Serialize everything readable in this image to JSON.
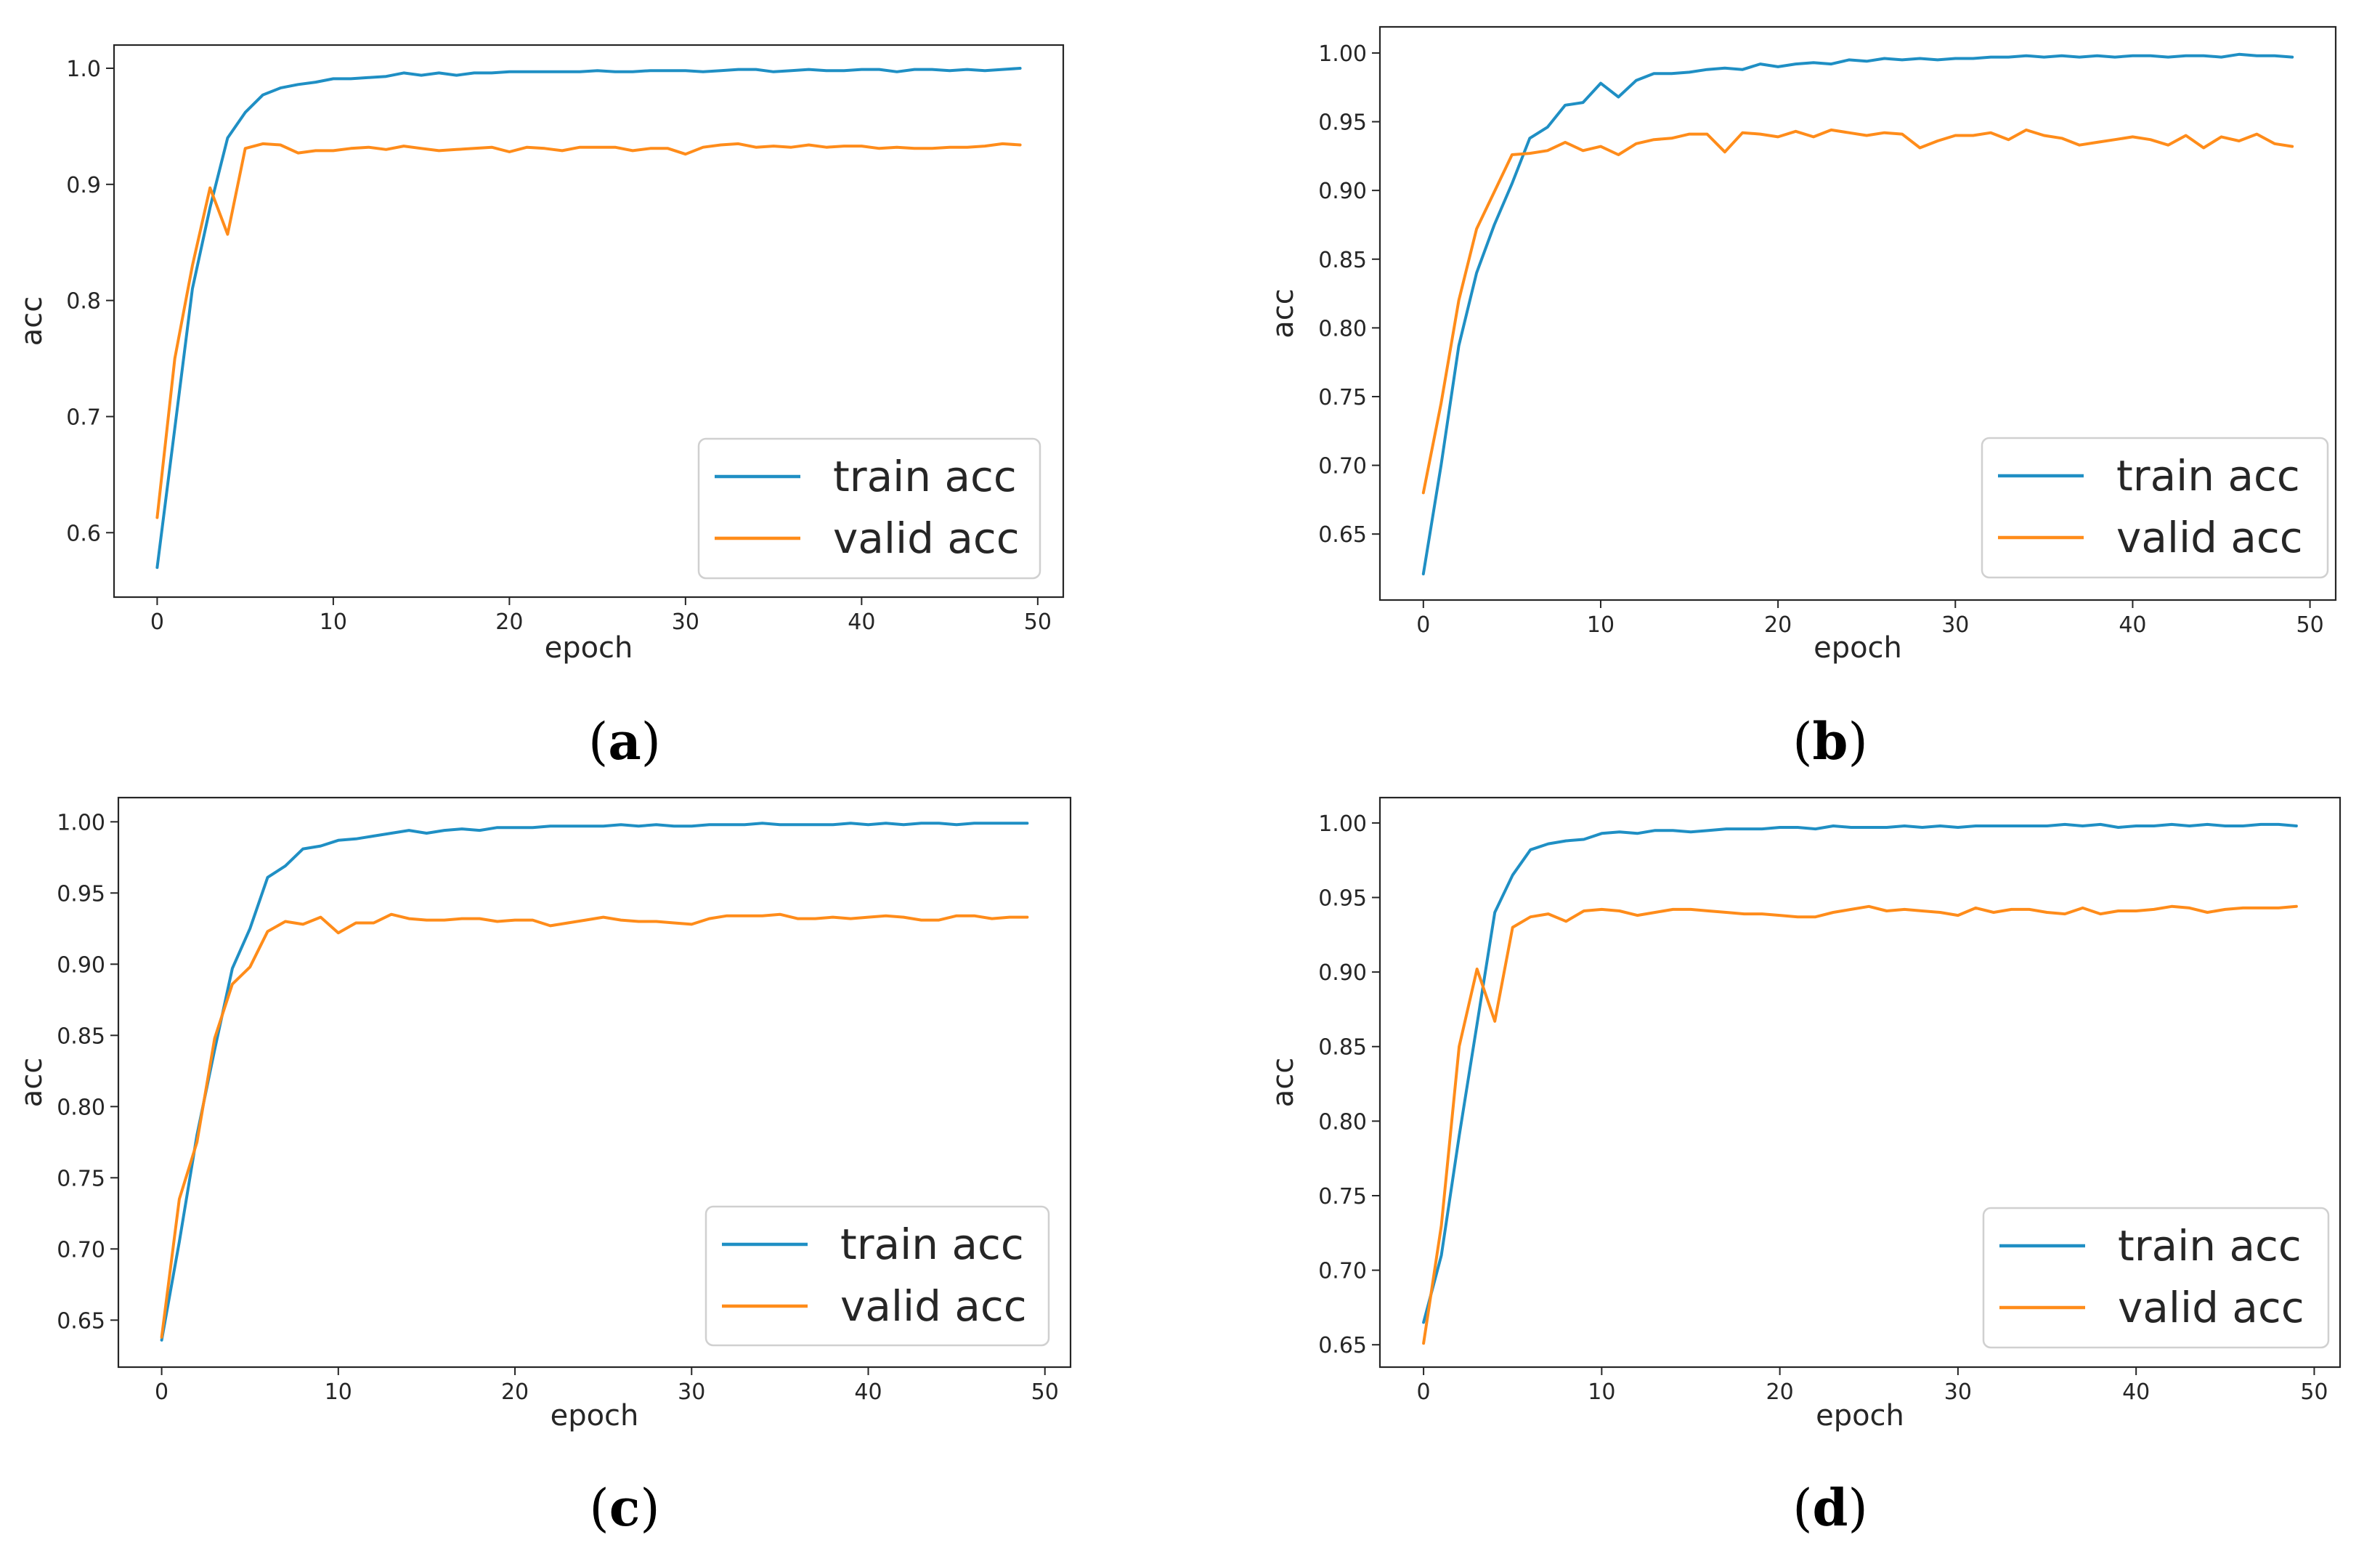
{
  "colors": {
    "train": "#1f8fc4",
    "valid": "#ff8c1a",
    "axis": "#262626",
    "legend_border": "#d0d0d0"
  },
  "chart_data": [
    {
      "type": "line",
      "panel": "a",
      "caption": {
        "open": "(",
        "letter": "a",
        "close": ")"
      },
      "xlabel": "epoch",
      "ylabel": "acc",
      "xlim": [
        -2.45,
        51.45
      ],
      "ylim": [
        0.5445,
        1.02
      ],
      "xticks": [
        0,
        10,
        20,
        30,
        40,
        50
      ],
      "xtick_labels": [
        "0",
        "10",
        "20",
        "30",
        "40",
        "50"
      ],
      "yticks": [
        0.6,
        0.7,
        0.8,
        0.9,
        1.0
      ],
      "ytick_labels": [
        "0.6",
        "0.7",
        "0.8",
        "0.9",
        "1.0"
      ],
      "legend": {
        "position": "lower-right",
        "entries": [
          "train acc",
          "valid acc"
        ]
      },
      "series": [
        {
          "name": "train acc",
          "key": "train",
          "values": [
            0.57,
            0.69,
            0.81,
            0.88,
            0.94,
            0.962,
            0.977,
            0.983,
            0.986,
            0.988,
            0.991,
            0.991,
            0.992,
            0.993,
            0.996,
            0.994,
            0.996,
            0.994,
            0.996,
            0.996,
            0.997,
            0.997,
            0.997,
            0.997,
            0.997,
            0.998,
            0.997,
            0.997,
            0.998,
            0.998,
            0.998,
            0.997,
            0.998,
            0.999,
            0.999,
            0.997,
            0.998,
            0.999,
            0.998,
            0.998,
            0.999,
            0.999,
            0.997,
            0.999,
            0.999,
            0.998,
            0.999,
            0.998,
            0.999,
            1.0
          ]
        },
        {
          "name": "valid acc",
          "key": "valid",
          "values": [
            0.613,
            0.75,
            0.83,
            0.897,
            0.857,
            0.931,
            0.935,
            0.934,
            0.927,
            0.929,
            0.929,
            0.931,
            0.932,
            0.93,
            0.933,
            0.931,
            0.929,
            0.93,
            0.931,
            0.932,
            0.928,
            0.932,
            0.931,
            0.929,
            0.932,
            0.932,
            0.932,
            0.929,
            0.931,
            0.931,
            0.926,
            0.932,
            0.934,
            0.935,
            0.932,
            0.933,
            0.932,
            0.934,
            0.932,
            0.933,
            0.933,
            0.931,
            0.932,
            0.931,
            0.931,
            0.932,
            0.932,
            0.933,
            0.935,
            0.934
          ]
        }
      ]
    },
    {
      "type": "line",
      "panel": "b",
      "caption": {
        "open": "(",
        "letter": "b",
        "close": ")"
      },
      "xlabel": "epoch",
      "ylabel": "acc",
      "xlim": [
        -2.45,
        51.45
      ],
      "ylim": [
        0.602,
        1.019
      ],
      "xticks": [
        0,
        10,
        20,
        30,
        40,
        50
      ],
      "xtick_labels": [
        "0",
        "10",
        "20",
        "30",
        "40",
        "50"
      ],
      "yticks": [
        0.65,
        0.7,
        0.75,
        0.8,
        0.85,
        0.9,
        0.95,
        1.0
      ],
      "ytick_labels": [
        "0.65",
        "0.70",
        "0.75",
        "0.80",
        "0.85",
        "0.90",
        "0.95",
        "1.00"
      ],
      "legend": {
        "position": "lower-right",
        "entries": [
          "train acc",
          "valid acc"
        ]
      },
      "series": [
        {
          "name": "train acc",
          "key": "train",
          "values": [
            0.621,
            0.7,
            0.787,
            0.84,
            0.875,
            0.905,
            0.938,
            0.946,
            0.962,
            0.964,
            0.978,
            0.968,
            0.98,
            0.985,
            0.985,
            0.986,
            0.988,
            0.989,
            0.988,
            0.992,
            0.99,
            0.992,
            0.993,
            0.992,
            0.995,
            0.994,
            0.996,
            0.995,
            0.996,
            0.995,
            0.996,
            0.996,
            0.997,
            0.997,
            0.998,
            0.997,
            0.998,
            0.997,
            0.998,
            0.997,
            0.998,
            0.998,
            0.997,
            0.998,
            0.998,
            0.997,
            0.999,
            0.998,
            0.998,
            0.997
          ]
        },
        {
          "name": "valid acc",
          "key": "valid",
          "values": [
            0.68,
            0.745,
            0.82,
            0.872,
            0.899,
            0.926,
            0.927,
            0.929,
            0.935,
            0.929,
            0.932,
            0.926,
            0.934,
            0.937,
            0.938,
            0.941,
            0.941,
            0.928,
            0.942,
            0.941,
            0.939,
            0.943,
            0.939,
            0.944,
            0.942,
            0.94,
            0.942,
            0.941,
            0.931,
            0.936,
            0.94,
            0.94,
            0.942,
            0.937,
            0.944,
            0.94,
            0.938,
            0.933,
            0.935,
            0.937,
            0.939,
            0.937,
            0.933,
            0.94,
            0.931,
            0.939,
            0.936,
            0.941,
            0.934,
            0.932
          ]
        }
      ]
    },
    {
      "type": "line",
      "panel": "c",
      "caption": {
        "open": "(",
        "letter": "c",
        "close": ")"
      },
      "xlabel": "epoch",
      "ylabel": "acc",
      "xlim": [
        -2.45,
        51.45
      ],
      "ylim": [
        0.617,
        1.017
      ],
      "xticks": [
        0,
        10,
        20,
        30,
        40,
        50
      ],
      "xtick_labels": [
        "0",
        "10",
        "20",
        "30",
        "40",
        "50"
      ],
      "yticks": [
        0.65,
        0.7,
        0.75,
        0.8,
        0.85,
        0.9,
        0.95,
        1.0
      ],
      "ytick_labels": [
        "0.65",
        "0.70",
        "0.75",
        "0.80",
        "0.85",
        "0.90",
        "0.95",
        "1.00"
      ],
      "legend": {
        "position": "lower-right",
        "entries": [
          "train acc",
          "valid acc"
        ]
      },
      "series": [
        {
          "name": "train acc",
          "key": "train",
          "values": [
            0.636,
            0.705,
            0.78,
            0.84,
            0.897,
            0.925,
            0.961,
            0.969,
            0.981,
            0.983,
            0.987,
            0.988,
            0.99,
            0.992,
            0.994,
            0.992,
            0.994,
            0.995,
            0.994,
            0.996,
            0.996,
            0.996,
            0.997,
            0.997,
            0.997,
            0.997,
            0.998,
            0.997,
            0.998,
            0.997,
            0.997,
            0.998,
            0.998,
            0.998,
            0.999,
            0.998,
            0.998,
            0.998,
            0.998,
            0.999,
            0.998,
            0.999,
            0.998,
            0.999,
            0.999,
            0.998,
            0.999,
            0.999,
            0.999,
            0.999
          ]
        },
        {
          "name": "valid acc",
          "key": "valid",
          "values": [
            0.638,
            0.735,
            0.775,
            0.848,
            0.886,
            0.898,
            0.923,
            0.93,
            0.928,
            0.933,
            0.922,
            0.929,
            0.929,
            0.935,
            0.932,
            0.931,
            0.931,
            0.932,
            0.932,
            0.93,
            0.931,
            0.931,
            0.927,
            0.929,
            0.931,
            0.933,
            0.931,
            0.93,
            0.93,
            0.929,
            0.928,
            0.932,
            0.934,
            0.934,
            0.934,
            0.935,
            0.932,
            0.932,
            0.933,
            0.932,
            0.933,
            0.934,
            0.933,
            0.931,
            0.931,
            0.934,
            0.934,
            0.932,
            0.933,
            0.933
          ]
        }
      ]
    },
    {
      "type": "line",
      "panel": "d",
      "caption": {
        "open": "(",
        "letter": "d",
        "close": ")"
      },
      "xlabel": "epoch",
      "ylabel": "acc",
      "xlim": [
        -2.45,
        51.45
      ],
      "ylim": [
        0.635,
        1.017
      ],
      "xticks": [
        0,
        10,
        20,
        30,
        40,
        50
      ],
      "xtick_labels": [
        "0",
        "10",
        "20",
        "30",
        "40",
        "50"
      ],
      "yticks": [
        0.65,
        0.7,
        0.75,
        0.8,
        0.85,
        0.9,
        0.95,
        1.0
      ],
      "ytick_labels": [
        "0.65",
        "0.70",
        "0.75",
        "0.80",
        "0.85",
        "0.90",
        "0.95",
        "1.00"
      ],
      "legend": {
        "position": "lower-right",
        "entries": [
          "train acc",
          "valid acc"
        ]
      },
      "series": [
        {
          "name": "train acc",
          "key": "train",
          "values": [
            0.665,
            0.71,
            0.79,
            0.865,
            0.94,
            0.965,
            0.982,
            0.986,
            0.988,
            0.989,
            0.993,
            0.994,
            0.993,
            0.995,
            0.995,
            0.994,
            0.995,
            0.996,
            0.996,
            0.996,
            0.997,
            0.997,
            0.996,
            0.998,
            0.997,
            0.997,
            0.997,
            0.998,
            0.997,
            0.998,
            0.997,
            0.998,
            0.998,
            0.998,
            0.998,
            0.998,
            0.999,
            0.998,
            0.999,
            0.997,
            0.998,
            0.998,
            0.999,
            0.998,
            0.999,
            0.998,
            0.998,
            0.999,
            0.999,
            0.998
          ]
        },
        {
          "name": "valid acc",
          "key": "valid",
          "values": [
            0.651,
            0.73,
            0.85,
            0.902,
            0.867,
            0.93,
            0.937,
            0.939,
            0.934,
            0.941,
            0.942,
            0.941,
            0.938,
            0.94,
            0.942,
            0.942,
            0.941,
            0.94,
            0.939,
            0.939,
            0.938,
            0.937,
            0.937,
            0.94,
            0.942,
            0.944,
            0.941,
            0.942,
            0.941,
            0.94,
            0.938,
            0.943,
            0.94,
            0.942,
            0.942,
            0.94,
            0.939,
            0.943,
            0.939,
            0.941,
            0.941,
            0.942,
            0.944,
            0.943,
            0.94,
            0.942,
            0.943,
            0.943,
            0.943,
            0.944
          ]
        }
      ]
    }
  ]
}
